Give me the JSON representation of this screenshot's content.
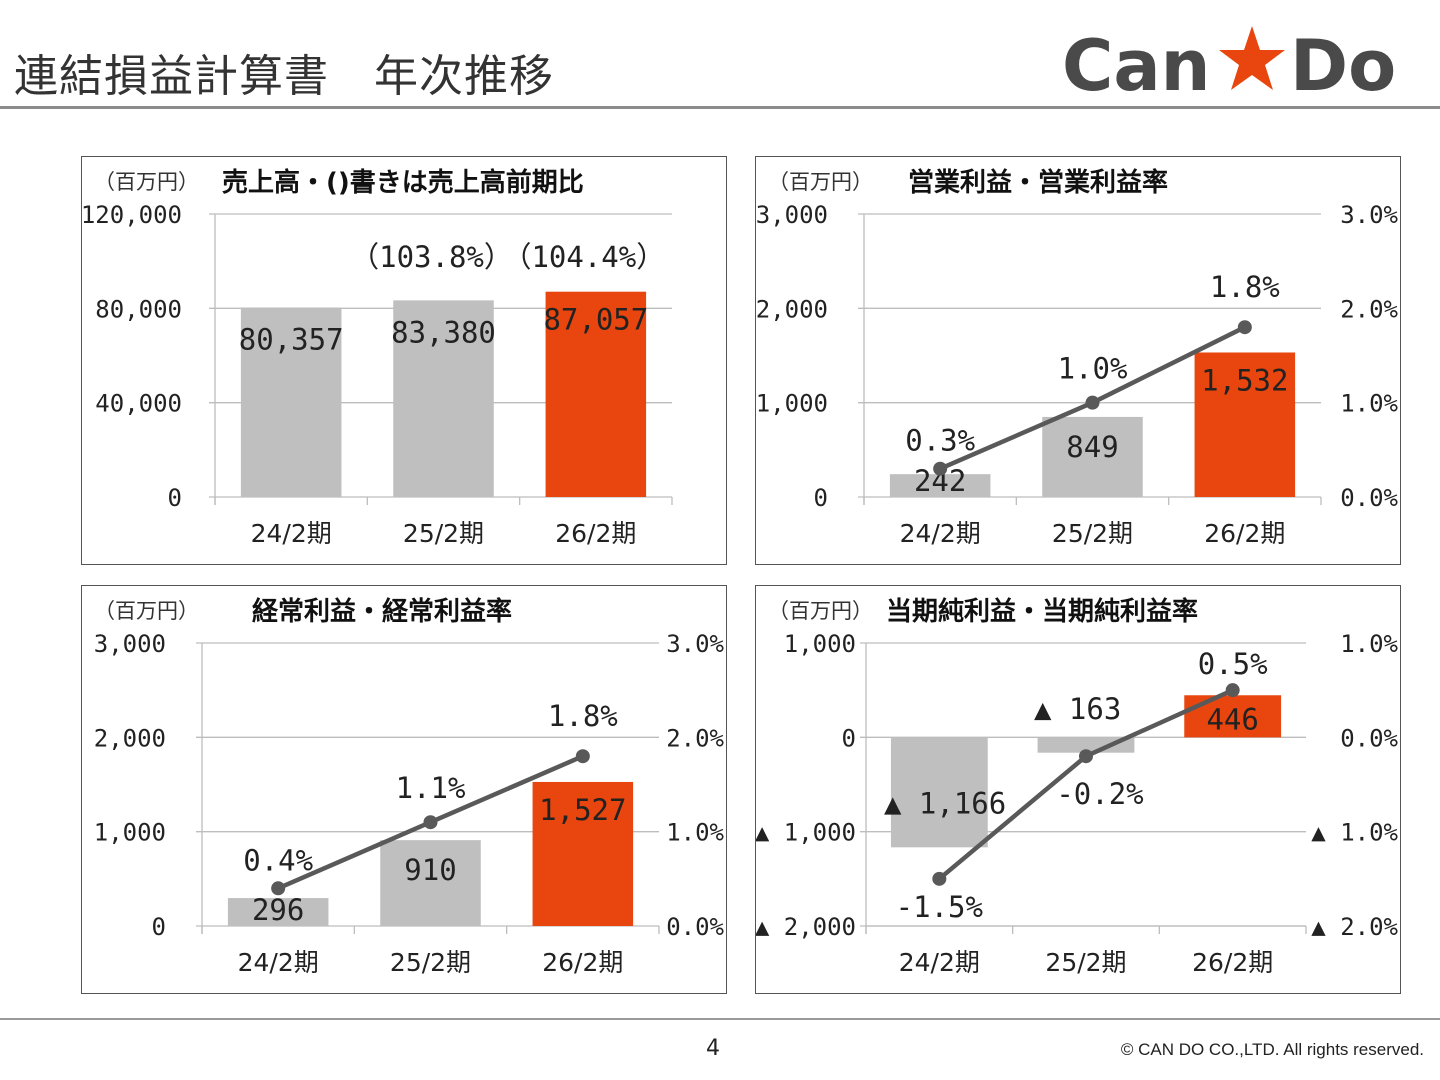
{
  "header": {
    "title": "連結損益計算書　年次推移",
    "logo_left": "Can",
    "logo_right": "Do",
    "logo_text_color": "#4a4a4a",
    "logo_star_color": "#e8460e"
  },
  "footer": {
    "page_number": "4",
    "copyright": "© CAN DO CO.,LTD. All rights reserved."
  },
  "colors": {
    "bar_gray": "#bfbfbf",
    "bar_accent": "#e8460e",
    "line": "#595959",
    "grid": "#bdbdbd"
  },
  "chart_data": [
    {
      "id": "sales",
      "type": "bar",
      "unit_label": "（百万円）",
      "title": "売上高・()書きは売上高前期比",
      "categories": [
        "24/2期",
        "25/2期",
        "26/2期"
      ],
      "values": [
        80357,
        83380,
        87057
      ],
      "value_labels": [
        "80,357",
        "83,380",
        "87,057"
      ],
      "ratio_labels": [
        "",
        "（103.8%）",
        "（104.4%）"
      ],
      "highlight_index": 2,
      "ylim": [
        0,
        120000
      ],
      "y_ticks": [
        0,
        40000,
        80000,
        120000
      ],
      "y_tick_labels": [
        "0",
        "40,000",
        "80,000",
        "120,000"
      ]
    },
    {
      "id": "operating",
      "type": "bar+line",
      "unit_label": "（百万円）",
      "title": "営業利益・営業利益率",
      "categories": [
        "24/2期",
        "25/2期",
        "26/2期"
      ],
      "values": [
        242,
        849,
        1532
      ],
      "value_labels": [
        "242",
        "849",
        "1,532"
      ],
      "rates": [
        0.3,
        1.0,
        1.8
      ],
      "rate_labels": [
        "0.3%",
        "1.0%",
        "1.8%"
      ],
      "highlight_index": 2,
      "ylim": [
        0,
        3000
      ],
      "y_ticks": [
        0,
        1000,
        2000,
        3000
      ],
      "y_tick_labels": [
        "0",
        "1,000",
        "2,000",
        "3,000"
      ],
      "y2lim": [
        0,
        3.0
      ],
      "y2_ticks": [
        0,
        1,
        2,
        3
      ],
      "y2_tick_labels": [
        "0.0%",
        "1.0%",
        "2.0%",
        "3.0%"
      ]
    },
    {
      "id": "ordinary",
      "type": "bar+line",
      "unit_label": "（百万円）",
      "title": "経常利益・経常利益率",
      "categories": [
        "24/2期",
        "25/2期",
        "26/2期"
      ],
      "values": [
        296,
        910,
        1527
      ],
      "value_labels": [
        "296",
        "910",
        "1,527"
      ],
      "rates": [
        0.4,
        1.1,
        1.8
      ],
      "rate_labels": [
        "0.4%",
        "1.1%",
        "1.8%"
      ],
      "highlight_index": 2,
      "ylim": [
        0,
        3000
      ],
      "y_ticks": [
        0,
        1000,
        2000,
        3000
      ],
      "y_tick_labels": [
        "0",
        "1,000",
        "2,000",
        "3,000"
      ],
      "y2lim": [
        0,
        3.0
      ],
      "y2_ticks": [
        0,
        1,
        2,
        3
      ],
      "y2_tick_labels": [
        "0.0%",
        "1.0%",
        "2.0%",
        "3.0%"
      ]
    },
    {
      "id": "net",
      "type": "bar+line",
      "unit_label": "（百万円）",
      "title": "当期純利益・当期純利益率",
      "categories": [
        "24/2期",
        "25/2期",
        "26/2期"
      ],
      "values": [
        -1166,
        -163,
        446
      ],
      "value_labels": [
        "▲ 1,166",
        "▲ 163",
        "446"
      ],
      "rates": [
        -1.5,
        -0.2,
        0.5
      ],
      "rate_labels": [
        "-1.5%",
        "-0.2%",
        "0.5%"
      ],
      "highlight_index": 2,
      "ylim": [
        -2000,
        1000
      ],
      "y_ticks": [
        -2000,
        -1000,
        0,
        1000
      ],
      "y_tick_labels": [
        "▲ 2,000",
        "▲ 1,000",
        "0",
        "1,000"
      ],
      "y2lim": [
        -2.0,
        1.0
      ],
      "y2_ticks": [
        -2,
        -1,
        0,
        1
      ],
      "y2_tick_labels": [
        "▲ 2.0%",
        "▲ 1.0%",
        "0.0%",
        "1.0%"
      ]
    }
  ]
}
